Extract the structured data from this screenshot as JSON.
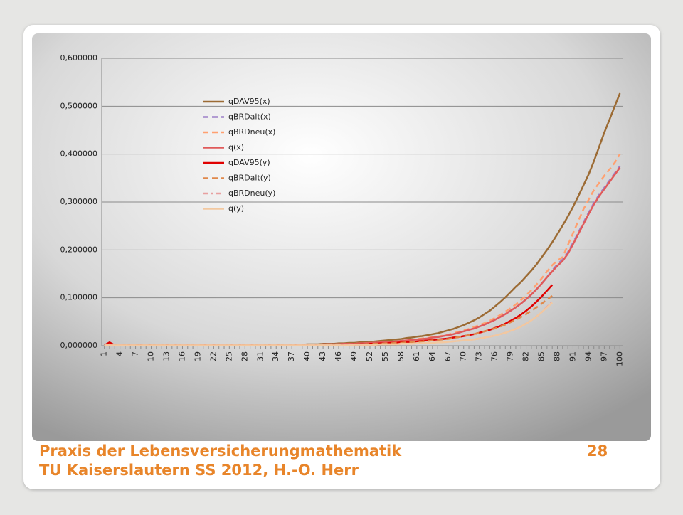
{
  "chart_data": {
    "type": "line",
    "categories": [
      1,
      null,
      null,
      4,
      null,
      null,
      7,
      null,
      null,
      10,
      null,
      null,
      13,
      null,
      null,
      16,
      null,
      null,
      19,
      null,
      null,
      22,
      null,
      null,
      25,
      null,
      null,
      28,
      null,
      null,
      31,
      null,
      null,
      34,
      null,
      null,
      37,
      null,
      null,
      40,
      null,
      null,
      43,
      null,
      null,
      46,
      null,
      null,
      49,
      null,
      null,
      52,
      null,
      null,
      55,
      null,
      null,
      58,
      null,
      null,
      61,
      null,
      null,
      64,
      null,
      null,
      67,
      null,
      null,
      70,
      null,
      null,
      73,
      null,
      null,
      76,
      null,
      null,
      79,
      null,
      null,
      82,
      null,
      null,
      85,
      null,
      null,
      88,
      null,
      null,
      91,
      null,
      null,
      94,
      null,
      null,
      97,
      null,
      null,
      100
    ],
    "ylim": [
      0,
      0.6
    ],
    "yticks": [
      {
        "value": 0,
        "label": "0,000000"
      },
      {
        "value": 0.1,
        "label": "0,100000"
      },
      {
        "value": 0.2,
        "label": "0,200000"
      },
      {
        "value": 0.3,
        "label": "0,300000"
      },
      {
        "value": 0.4,
        "label": "0,400000"
      },
      {
        "value": 0.5,
        "label": "0,500000"
      },
      {
        "value": 0.6,
        "label": "0,600000"
      }
    ],
    "grid": true,
    "legend": "top-left",
    "series": [
      {
        "name": "qDAV95(x)",
        "color": "#9c6b34",
        "dash": "solid",
        "values": [
          0.001,
          0.001,
          0.001,
          0.001,
          0.001,
          0.001,
          0.001,
          0.001,
          0.001,
          0.001,
          0.001,
          0.001,
          0.001,
          0.001,
          0.001,
          0.001,
          0.001,
          0.001,
          0.001,
          0.001,
          0.001,
          0.001,
          0.001,
          0.001,
          0.001,
          0.001,
          0.001,
          0.001,
          0.001,
          0.001,
          0.001,
          0.001,
          0.001,
          0.001,
          0.001,
          0.002,
          0.002,
          0.002,
          0.002,
          0.003,
          0.003,
          0.003,
          0.004,
          0.004,
          0.004,
          0.005,
          0.005,
          0.006,
          0.006,
          0.007,
          0.007,
          0.008,
          0.009,
          0.01,
          0.011,
          0.012,
          0.013,
          0.014,
          0.016,
          0.017,
          0.019,
          0.02,
          0.022,
          0.024,
          0.026,
          0.029,
          0.032,
          0.035,
          0.039,
          0.043,
          0.048,
          0.053,
          0.059,
          0.066,
          0.073,
          0.082,
          0.091,
          0.101,
          0.112,
          0.123,
          0.133,
          0.145,
          0.157,
          0.17,
          0.185,
          0.2,
          0.216,
          0.233,
          0.251,
          0.27,
          0.29,
          0.312,
          0.335,
          0.358,
          0.385,
          0.415,
          0.445,
          0.472,
          0.5,
          0.527
        ]
      },
      {
        "name": "qBRDalt(x)",
        "color": "#9e80c8",
        "dash": "dashed",
        "values": [
          0.001,
          0.001,
          0.001,
          0.001,
          0.001,
          0.001,
          0.001,
          0.001,
          0.001,
          0.001,
          0.001,
          0.001,
          0.001,
          0.001,
          0.001,
          0.001,
          0.001,
          0.001,
          0.001,
          0.001,
          0.001,
          0.001,
          0.001,
          0.001,
          0.001,
          0.001,
          0.001,
          0.001,
          0.001,
          0.001,
          0.001,
          0.001,
          0.001,
          0.001,
          0.001,
          0.001,
          0.001,
          0.001,
          0.002,
          0.002,
          0.002,
          0.002,
          0.003,
          0.003,
          0.003,
          0.003,
          0.004,
          0.004,
          0.004,
          0.005,
          0.005,
          0.006,
          0.006,
          0.007,
          0.007,
          0.008,
          0.009,
          0.01,
          0.011,
          0.012,
          0.013,
          0.014,
          0.015,
          0.017,
          0.018,
          0.02,
          0.022,
          0.024,
          0.027,
          0.03,
          0.033,
          0.036,
          0.04,
          0.044,
          0.049,
          0.054,
          0.06,
          0.066,
          0.073,
          0.08,
          0.088,
          0.097,
          0.107,
          0.118,
          0.13,
          0.143,
          0.157,
          0.17,
          0.18,
          0.195,
          0.215,
          0.236,
          0.257,
          0.278,
          0.298,
          0.315,
          0.33,
          0.345,
          0.36,
          0.375
        ]
      },
      {
        "name": "qBRDneu(x)",
        "color": "#ffa070",
        "dash": "dashed",
        "values": [
          0.001,
          0.001,
          0.001,
          0.001,
          0.001,
          0.001,
          0.001,
          0.001,
          0.001,
          0.001,
          0.001,
          0.001,
          0.001,
          0.001,
          0.001,
          0.001,
          0.001,
          0.001,
          0.001,
          0.001,
          0.001,
          0.001,
          0.001,
          0.001,
          0.001,
          0.001,
          0.001,
          0.001,
          0.001,
          0.001,
          0.001,
          0.001,
          0.001,
          0.001,
          0.001,
          0.001,
          0.001,
          0.001,
          0.002,
          0.002,
          0.002,
          0.002,
          0.003,
          0.003,
          0.003,
          0.003,
          0.004,
          0.004,
          0.004,
          0.005,
          0.005,
          0.006,
          0.006,
          0.007,
          0.007,
          0.008,
          0.009,
          0.01,
          0.011,
          0.012,
          0.014,
          0.015,
          0.016,
          0.018,
          0.019,
          0.021,
          0.023,
          0.026,
          0.029,
          0.032,
          0.035,
          0.039,
          0.043,
          0.047,
          0.052,
          0.058,
          0.064,
          0.071,
          0.078,
          0.086,
          0.095,
          0.105,
          0.116,
          0.128,
          0.141,
          0.155,
          0.168,
          0.178,
          0.185,
          0.21,
          0.235,
          0.26,
          0.285,
          0.305,
          0.325,
          0.34,
          0.355,
          0.368,
          0.382,
          0.4
        ]
      },
      {
        "name": "q(x)",
        "color": "#e05a5a",
        "dash": "solid",
        "values": [
          0.001,
          0.001,
          0.001,
          0.001,
          0.001,
          0.001,
          0.001,
          0.001,
          0.001,
          0.001,
          0.001,
          0.001,
          0.001,
          0.001,
          0.001,
          0.001,
          0.001,
          0.001,
          0.001,
          0.001,
          0.001,
          0.001,
          0.001,
          0.001,
          0.001,
          0.001,
          0.001,
          0.001,
          0.001,
          0.001,
          0.001,
          0.001,
          0.001,
          0.001,
          0.001,
          0.001,
          0.001,
          0.001,
          0.002,
          0.002,
          0.002,
          0.002,
          0.003,
          0.003,
          0.003,
          0.003,
          0.004,
          0.004,
          0.004,
          0.005,
          0.005,
          0.006,
          0.006,
          0.007,
          0.007,
          0.008,
          0.009,
          0.01,
          0.011,
          0.012,
          0.013,
          0.014,
          0.015,
          0.017,
          0.018,
          0.02,
          0.022,
          0.024,
          0.027,
          0.03,
          0.033,
          0.036,
          0.04,
          0.044,
          0.049,
          0.054,
          0.06,
          0.066,
          0.073,
          0.08,
          0.088,
          0.097,
          0.107,
          0.118,
          0.13,
          0.143,
          0.155,
          0.167,
          0.177,
          0.192,
          0.212,
          0.233,
          0.254,
          0.275,
          0.295,
          0.312,
          0.327,
          0.342,
          0.357,
          0.372
        ]
      },
      {
        "name": "qDAV95(y)",
        "color": "#e00000",
        "dash": "solid",
        "values": [
          0.001,
          0.007,
          0.001,
          0.001,
          0.001,
          0.001,
          0.001,
          0.001,
          0.001,
          0.001,
          0.001,
          0.001,
          0.001,
          0.001,
          0.001,
          0.001,
          0.001,
          0.001,
          0.001,
          0.001,
          0.001,
          0.001,
          0.001,
          0.001,
          0.001,
          0.001,
          0.001,
          0.001,
          0.001,
          0.001,
          0.001,
          0.001,
          0.001,
          0.001,
          0.001,
          0.001,
          0.001,
          0.001,
          0.001,
          0.001,
          0.001,
          0.001,
          0.001,
          0.001,
          0.001,
          0.002,
          0.002,
          0.002,
          0.003,
          0.003,
          0.003,
          0.004,
          0.004,
          0.005,
          0.005,
          0.006,
          0.006,
          0.007,
          0.008,
          0.008,
          0.009,
          0.01,
          0.011,
          0.012,
          0.013,
          0.014,
          0.015,
          0.017,
          0.018,
          0.02,
          0.022,
          0.024,
          0.027,
          0.03,
          0.033,
          0.037,
          0.041,
          0.046,
          0.052,
          0.058,
          0.065,
          0.073,
          0.082,
          0.092,
          0.103,
          0.115,
          0.127,
          null,
          null,
          null,
          null,
          null,
          null,
          null,
          null,
          null,
          null,
          null,
          null,
          null
        ]
      },
      {
        "name": "qBRDalt(y)",
        "color": "#e0884a",
        "dash": "dashed",
        "values": [
          0.001,
          0.001,
          0.001,
          0.001,
          0.001,
          0.001,
          0.001,
          0.001,
          0.001,
          0.001,
          0.001,
          0.001,
          0.001,
          0.001,
          0.001,
          0.001,
          0.001,
          0.001,
          0.001,
          0.001,
          0.001,
          0.001,
          0.001,
          0.001,
          0.001,
          0.001,
          0.001,
          0.001,
          0.001,
          0.001,
          0.001,
          0.001,
          0.001,
          0.001,
          0.001,
          0.001,
          0.001,
          0.001,
          0.001,
          0.001,
          0.001,
          0.001,
          0.002,
          0.002,
          0.002,
          0.002,
          0.002,
          0.003,
          0.003,
          0.003,
          0.003,
          0.004,
          0.004,
          0.004,
          0.005,
          0.005,
          0.006,
          0.006,
          0.007,
          0.007,
          0.008,
          0.009,
          0.01,
          0.011,
          0.012,
          0.013,
          0.014,
          0.016,
          0.018,
          0.02,
          0.022,
          0.024,
          0.027,
          0.03,
          0.033,
          0.036,
          0.04,
          0.044,
          0.049,
          0.054,
          0.06,
          0.066,
          0.073,
          0.08,
          0.088,
          0.096,
          0.104,
          null,
          null,
          null,
          null,
          null,
          null,
          null,
          null,
          null,
          null,
          null,
          null,
          null
        ]
      },
      {
        "name": "qBRDneu(y)",
        "color": "#e8a0a0",
        "dash": "dashdot",
        "values": [
          0.001,
          0.001,
          0.001,
          0.001,
          0.001,
          0.001,
          0.001,
          0.001,
          0.001,
          0.001,
          0.001,
          0.001,
          0.001,
          0.001,
          0.001,
          0.001,
          0.001,
          0.001,
          0.001,
          0.001,
          0.001,
          0.001,
          0.001,
          0.001,
          0.001,
          0.001,
          0.001,
          0.001,
          0.001,
          0.001,
          0.001,
          0.001,
          0.001,
          0.001,
          0.001,
          0.001,
          0.001,
          0.001,
          0.001,
          0.001,
          0.001,
          0.001,
          0.001,
          0.001,
          0.001,
          0.001,
          0.001,
          0.001,
          0.002,
          0.002,
          0.002,
          0.002,
          0.002,
          0.003,
          0.003,
          0.003,
          0.003,
          0.004,
          0.004,
          0.004,
          0.005,
          0.005,
          0.006,
          0.006,
          0.007,
          0.007,
          0.008,
          0.009,
          0.01,
          0.011,
          0.012,
          0.013,
          0.015,
          0.017,
          0.019,
          0.021,
          0.024,
          0.027,
          0.031,
          0.035,
          0.04,
          0.046,
          0.053,
          0.061,
          0.07,
          0.081,
          0.092,
          null,
          null,
          null,
          null,
          null,
          null,
          null,
          null,
          null,
          null,
          null,
          null,
          null
        ]
      },
      {
        "name": "q(y)",
        "color": "#f2c8a0",
        "dash": "solid",
        "values": [
          0.001,
          0.001,
          0.001,
          0.001,
          0.001,
          0.001,
          0.001,
          0.001,
          0.001,
          0.001,
          0.001,
          0.001,
          0.001,
          0.001,
          0.001,
          0.001,
          0.001,
          0.001,
          0.001,
          0.001,
          0.001,
          0.001,
          0.001,
          0.001,
          0.001,
          0.001,
          0.001,
          0.001,
          0.001,
          0.001,
          0.001,
          0.001,
          0.001,
          0.001,
          0.001,
          0.001,
          0.001,
          0.001,
          0.001,
          0.001,
          0.001,
          0.001,
          0.001,
          0.001,
          0.001,
          0.001,
          0.001,
          0.001,
          0.002,
          0.002,
          0.002,
          0.002,
          0.002,
          0.003,
          0.003,
          0.003,
          0.003,
          0.004,
          0.004,
          0.004,
          0.005,
          0.005,
          0.006,
          0.006,
          0.007,
          0.007,
          0.008,
          0.009,
          0.01,
          0.011,
          0.012,
          0.013,
          0.015,
          0.017,
          0.019,
          0.021,
          0.024,
          0.027,
          0.031,
          0.035,
          0.04,
          0.046,
          0.053,
          0.061,
          0.07,
          0.08,
          0.09,
          null,
          null,
          null,
          null,
          null,
          null,
          null,
          null,
          null,
          null,
          null,
          null,
          null
        ]
      }
    ]
  },
  "footer": {
    "title": "Praxis der Lebensversicherungmathematik",
    "page": "28",
    "subtitle": "TU Kaiserslautern SS 2012, H.-O. Herr"
  }
}
